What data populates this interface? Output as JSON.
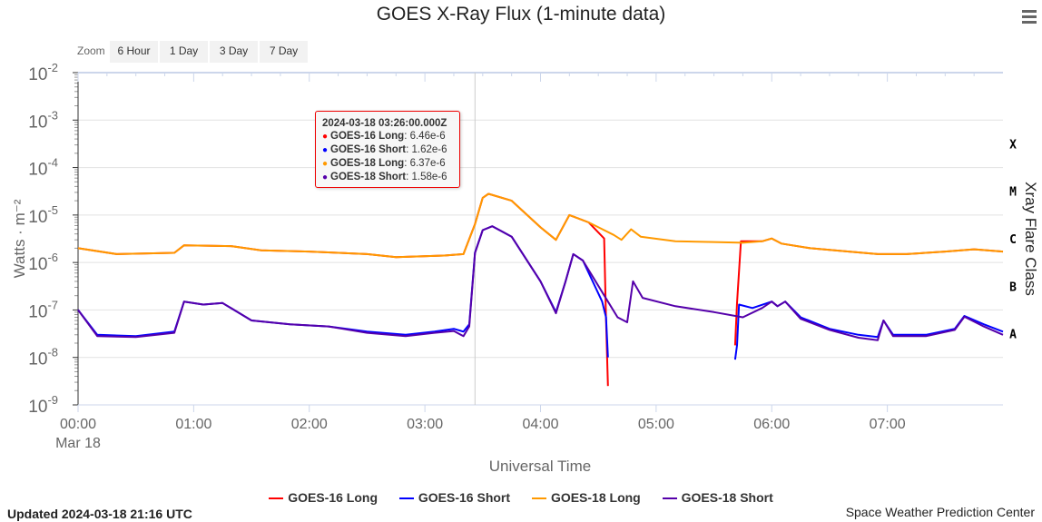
{
  "header": {
    "title": "GOES X-Ray Flux (1-minute data)",
    "menu_icon": "hamburger-menu-icon"
  },
  "zoom": {
    "label": "Zoom",
    "buttons": [
      "6 Hour",
      "1 Day",
      "3 Day",
      "7 Day"
    ]
  },
  "tooltip": {
    "time": "2024-03-18 03:26:00.000Z",
    "rows": [
      {
        "name": "GOES-16 Long",
        "value": "6.46e-6",
        "color": "#ff0000"
      },
      {
        "name": "GOES-16 Short",
        "value": "1.62e-6",
        "color": "#0000ff"
      },
      {
        "name": "GOES-18 Long",
        "value": "6.37e-6",
        "color": "#ff9900"
      },
      {
        "name": "GOES-18 Short",
        "value": "1.58e-6",
        "color": "#5500aa"
      }
    ]
  },
  "footer": {
    "updated": "Updated 2024-03-18 21:16 UTC",
    "credit": "Space Weather Prediction Center"
  },
  "chart_data": {
    "type": "line",
    "title": "GOES X-Ray Flux (1-minute data)",
    "xlabel": "Universal Time",
    "ylabel": "Watts · m⁻²",
    "y2label": "Xray Flare Class",
    "xlim": [
      "00:00",
      "08:00"
    ],
    "x_ticks": [
      "00:00",
      "01:00",
      "02:00",
      "03:00",
      "04:00",
      "05:00",
      "06:00",
      "07:00"
    ],
    "x_date_label": "Mar 18",
    "y_scale": "log",
    "ylim": [
      1e-09,
      0.01
    ],
    "y_ticks": [
      "10-9",
      "10-8",
      "10-7",
      "10-6",
      "10-5",
      "10-4",
      "10-3",
      "10-2"
    ],
    "flare_classes": [
      "X",
      "M",
      "C",
      "B",
      "A"
    ],
    "grid": true,
    "legend": "bottom",
    "crosshair": "03:26",
    "series": [
      {
        "name": "GOES-16 Long",
        "color": "#ff0000",
        "points": [
          [
            "00:00",
            2e-06
          ],
          [
            "00:20",
            1.5e-06
          ],
          [
            "00:50",
            1.6e-06
          ],
          [
            "00:55",
            2.3e-06
          ],
          [
            "01:20",
            2.2e-06
          ],
          [
            "01:35",
            1.8e-06
          ],
          [
            "02:00",
            1.7e-06
          ],
          [
            "02:30",
            1.5e-06
          ],
          [
            "02:45",
            1.3e-06
          ],
          [
            "03:10",
            1.4e-06
          ],
          [
            "03:20",
            1.5e-06
          ],
          [
            "03:26",
            6.46e-06
          ],
          [
            "03:30",
            2.3e-05
          ],
          [
            "03:33",
            2.8e-05
          ],
          [
            "03:45",
            2e-05
          ],
          [
            "04:00",
            5.5e-06
          ],
          [
            "04:08",
            3e-06
          ],
          [
            "04:15",
            1e-05
          ],
          [
            "04:25",
            7e-06
          ],
          [
            "04:33",
            3.2e-06
          ],
          [
            "04:34",
            6e-08
          ],
          [
            "04:35",
            2.5e-09
          ],
          null,
          [
            "05:41",
            1.8e-08
          ],
          [
            "05:42",
            1.4e-07
          ],
          [
            "05:44",
            2.8e-06
          ],
          [
            "05:55",
            2.8e-06
          ],
          [
            "06:00",
            3.2e-06
          ],
          [
            "06:05",
            2.5e-06
          ],
          [
            "06:20",
            2e-06
          ],
          [
            "06:40",
            1.7e-06
          ],
          [
            "06:55",
            1.5e-06
          ],
          [
            "07:10",
            1.5e-06
          ],
          [
            "07:30",
            1.7e-06
          ],
          [
            "07:45",
            1.9e-06
          ],
          [
            "08:00",
            1.7e-06
          ]
        ]
      },
      {
        "name": "GOES-16 Short",
        "color": "#0000ff",
        "points": [
          [
            "00:00",
            1e-07
          ],
          [
            "00:10",
            3e-08
          ],
          [
            "00:30",
            2.8e-08
          ],
          [
            "00:50",
            3.5e-08
          ],
          [
            "00:55",
            1.5e-07
          ],
          [
            "01:05",
            1.3e-07
          ],
          [
            "01:15",
            1.4e-07
          ],
          [
            "01:30",
            6e-08
          ],
          [
            "01:50",
            5e-08
          ],
          [
            "02:10",
            4.5e-08
          ],
          [
            "02:30",
            3.5e-08
          ],
          [
            "02:50",
            3e-08
          ],
          [
            "03:05",
            3.5e-08
          ],
          [
            "03:15",
            4e-08
          ],
          [
            "03:20",
            3.5e-08
          ],
          [
            "03:23",
            5e-08
          ],
          [
            "03:26",
            1.62e-06
          ],
          [
            "03:30",
            4.8e-06
          ],
          [
            "03:35",
            5.8e-06
          ],
          [
            "03:45",
            3.5e-06
          ],
          [
            "04:00",
            4e-07
          ],
          [
            "04:08",
            9e-08
          ],
          [
            "04:13",
            4e-07
          ],
          [
            "04:17",
            1.5e-06
          ],
          [
            "04:22",
            1.1e-06
          ],
          [
            "04:32",
            1.5e-07
          ],
          [
            "04:34",
            7e-08
          ],
          [
            "04:35",
            1e-08
          ],
          null,
          [
            "05:41",
            9e-09
          ],
          [
            "05:42",
            1.8e-08
          ],
          [
            "05:43",
            1.3e-07
          ],
          [
            "05:50",
            1.1e-07
          ],
          [
            "06:00",
            1.5e-07
          ],
          [
            "06:03",
            1.2e-07
          ],
          [
            "06:07",
            1.5e-07
          ],
          [
            "06:15",
            7e-08
          ],
          [
            "06:30",
            4e-08
          ],
          [
            "06:45",
            3e-08
          ],
          [
            "06:55",
            2.7e-08
          ],
          [
            "06:58",
            6e-08
          ],
          [
            "07:03",
            3e-08
          ],
          [
            "07:20",
            3e-08
          ],
          [
            "07:35",
            4e-08
          ],
          [
            "07:40",
            7.5e-08
          ],
          [
            "07:50",
            5e-08
          ],
          [
            "08:00",
            3.5e-08
          ]
        ]
      },
      {
        "name": "GOES-18 Long",
        "color": "#ff9900",
        "points": [
          [
            "00:00",
            2e-06
          ],
          [
            "00:20",
            1.5e-06
          ],
          [
            "00:50",
            1.6e-06
          ],
          [
            "00:55",
            2.3e-06
          ],
          [
            "01:20",
            2.2e-06
          ],
          [
            "01:35",
            1.8e-06
          ],
          [
            "02:00",
            1.7e-06
          ],
          [
            "02:30",
            1.5e-06
          ],
          [
            "02:45",
            1.3e-06
          ],
          [
            "03:10",
            1.4e-06
          ],
          [
            "03:20",
            1.5e-06
          ],
          [
            "03:26",
            6.37e-06
          ],
          [
            "03:30",
            2.3e-05
          ],
          [
            "03:33",
            2.8e-05
          ],
          [
            "03:45",
            2e-05
          ],
          [
            "04:00",
            5.5e-06
          ],
          [
            "04:08",
            3e-06
          ],
          [
            "04:15",
            1e-05
          ],
          [
            "04:25",
            7e-06
          ],
          [
            "04:38",
            3.8e-06
          ],
          [
            "04:42",
            3e-06
          ],
          [
            "04:47",
            5e-06
          ],
          [
            "04:52",
            3.5e-06
          ],
          [
            "05:10",
            2.8e-06
          ],
          [
            "05:30",
            2.7e-06
          ],
          [
            "05:45",
            2.6e-06
          ],
          [
            "05:55",
            2.8e-06
          ],
          [
            "06:00",
            3.2e-06
          ],
          [
            "06:05",
            2.5e-06
          ],
          [
            "06:20",
            2e-06
          ],
          [
            "06:40",
            1.7e-06
          ],
          [
            "06:55",
            1.5e-06
          ],
          [
            "07:10",
            1.5e-06
          ],
          [
            "07:30",
            1.7e-06
          ],
          [
            "07:45",
            1.9e-06
          ],
          [
            "08:00",
            1.7e-06
          ]
        ]
      },
      {
        "name": "GOES-18 Short",
        "color": "#5500aa",
        "points": [
          [
            "00:00",
            1e-07
          ],
          [
            "00:10",
            2.8e-08
          ],
          [
            "00:30",
            2.7e-08
          ],
          [
            "00:50",
            3.3e-08
          ],
          [
            "00:55",
            1.5e-07
          ],
          [
            "01:05",
            1.3e-07
          ],
          [
            "01:15",
            1.4e-07
          ],
          [
            "01:30",
            6e-08
          ],
          [
            "01:50",
            5e-08
          ],
          [
            "02:10",
            4.5e-08
          ],
          [
            "02:30",
            3.3e-08
          ],
          [
            "02:50",
            2.8e-08
          ],
          [
            "03:05",
            3.3e-08
          ],
          [
            "03:15",
            3.6e-08
          ],
          [
            "03:20",
            2.8e-08
          ],
          [
            "03:23",
            4.5e-08
          ],
          [
            "03:26",
            1.58e-06
          ],
          [
            "03:30",
            4.8e-06
          ],
          [
            "03:35",
            5.8e-06
          ],
          [
            "03:45",
            3.5e-06
          ],
          [
            "04:00",
            4e-07
          ],
          [
            "04:08",
            8.5e-08
          ],
          [
            "04:13",
            4e-07
          ],
          [
            "04:17",
            1.5e-06
          ],
          [
            "04:22",
            1.1e-06
          ],
          [
            "04:35",
            1.5e-07
          ],
          [
            "04:40",
            7e-08
          ],
          [
            "04:45",
            5.5e-08
          ],
          [
            "04:48",
            4e-07
          ],
          [
            "04:53",
            1.8e-07
          ],
          [
            "05:10",
            1.2e-07
          ],
          [
            "05:30",
            9e-08
          ],
          [
            "05:45",
            7e-08
          ],
          [
            "05:55",
            1.1e-07
          ],
          [
            "06:00",
            1.5e-07
          ],
          [
            "06:03",
            1.2e-07
          ],
          [
            "06:07",
            1.5e-07
          ],
          [
            "06:15",
            6.5e-08
          ],
          [
            "06:30",
            3.8e-08
          ],
          [
            "06:45",
            2.6e-08
          ],
          [
            "06:55",
            2.3e-08
          ],
          [
            "06:58",
            6e-08
          ],
          [
            "07:03",
            2.8e-08
          ],
          [
            "07:20",
            2.8e-08
          ],
          [
            "07:35",
            3.8e-08
          ],
          [
            "07:40",
            7.2e-08
          ],
          [
            "07:50",
            4.5e-08
          ],
          [
            "08:00",
            3e-08
          ]
        ]
      }
    ]
  }
}
